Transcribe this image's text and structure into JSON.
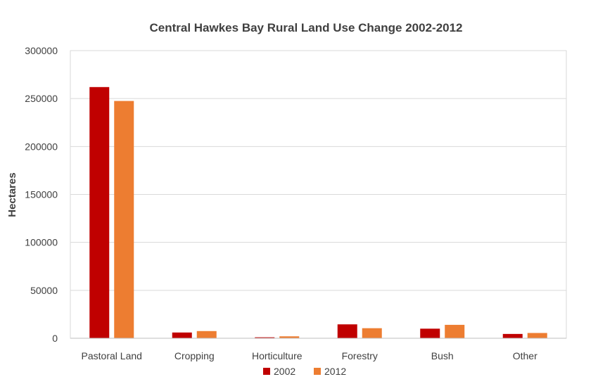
{
  "chart_data": {
    "type": "bar",
    "title": "Central Hawkes Bay Rural Land Use Change 2002-2012",
    "xlabel": "",
    "ylabel": "Hectares",
    "ylim": [
      0,
      300000
    ],
    "yticks": [
      0,
      50000,
      100000,
      150000,
      200000,
      250000,
      300000
    ],
    "ytick_labels": [
      "0",
      "50000",
      "100000",
      "150000",
      "200000",
      "250000",
      "300000"
    ],
    "categories": [
      "Pastoral Land",
      "Cropping",
      "Horticulture",
      "Forestry",
      "Bush",
      "Other"
    ],
    "series": [
      {
        "name": "2002",
        "color": "#c00000",
        "values": [
          262000,
          6000,
          1000,
          14500,
          10000,
          4500
        ]
      },
      {
        "name": "2012",
        "color": "#ed7d31",
        "values": [
          247500,
          7500,
          2000,
          10500,
          14000,
          5500
        ]
      }
    ],
    "grid": true,
    "legend": "bottom"
  }
}
